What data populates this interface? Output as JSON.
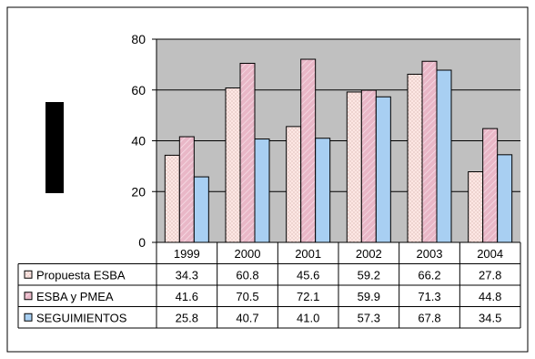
{
  "chart_data": {
    "type": "bar",
    "categories": [
      "1999",
      "2000",
      "2001",
      "2002",
      "2003",
      "2004"
    ],
    "series": [
      {
        "name": "Propuesta ESBA",
        "values": [
          34.3,
          60.8,
          45.6,
          59.2,
          66.2,
          27.8
        ],
        "color": "#fde7e4",
        "pattern": "dots"
      },
      {
        "name": "ESBA y PMEA",
        "values": [
          41.6,
          70.5,
          72.1,
          59.9,
          71.3,
          44.8
        ],
        "color": "#e9b7c7",
        "pattern": "diagonal"
      },
      {
        "name": "SEGUIMIENTOS",
        "values": [
          25.8,
          40.7,
          41.0,
          57.3,
          67.8,
          34.5
        ],
        "color": "#a8cff2",
        "pattern": "none"
      }
    ],
    "value_labels": [
      [
        "34.3",
        "60.8",
        "45.6",
        "59.2",
        "66.2",
        "27.8"
      ],
      [
        "41.6",
        "70.5",
        "72.1",
        "59.9",
        "71.3",
        "44.8"
      ],
      [
        "25.8",
        "40.7",
        "41.0",
        "57.3",
        "67.8",
        "34.5"
      ]
    ],
    "yticks": [
      "0",
      "20",
      "40",
      "60",
      "80"
    ],
    "ylim": [
      0,
      80
    ],
    "grid": true,
    "legend": "data-table",
    "plot_background": "#c0c0c0"
  }
}
